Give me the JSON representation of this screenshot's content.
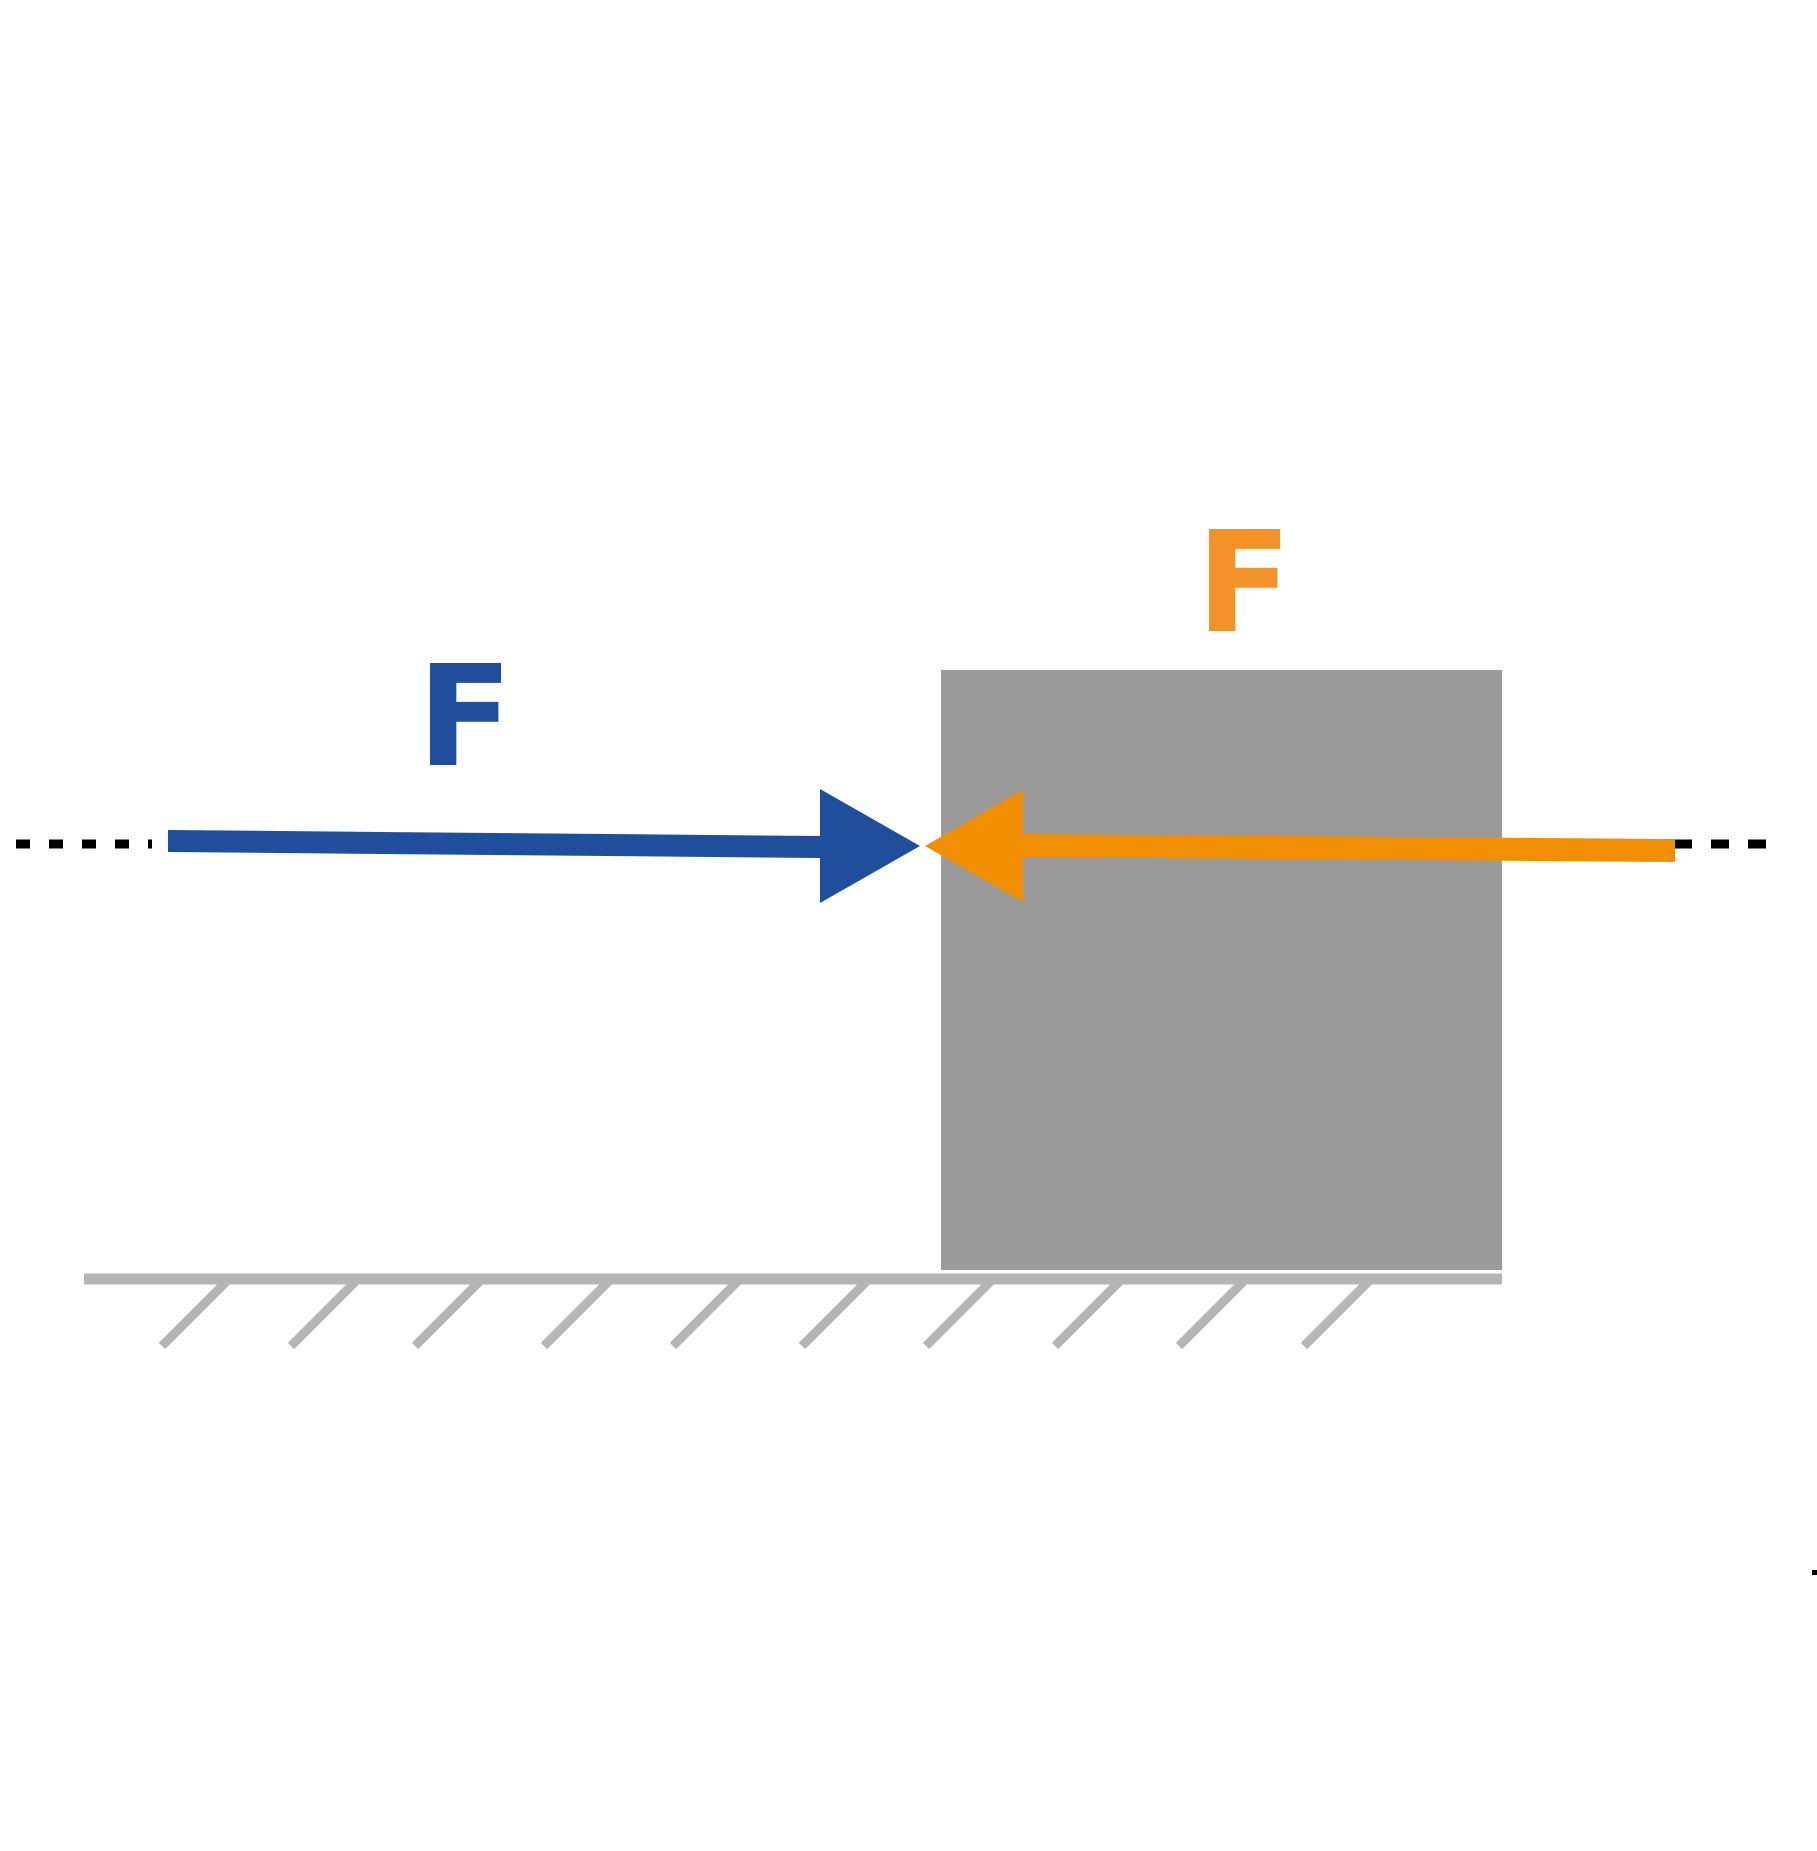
{
  "colors": {
    "background": "#ffffff",
    "applied_force": "#1f4e9c",
    "reaction_force": "#f18f00",
    "reaction_label": "#f4922a",
    "block": "#9b9b9b",
    "ground": "#b5b5b5",
    "line_of_action": "#000000"
  },
  "forces": {
    "applied": {
      "label": "F",
      "direction": "right"
    },
    "reaction": {
      "label": "F",
      "direction": "left"
    }
  }
}
